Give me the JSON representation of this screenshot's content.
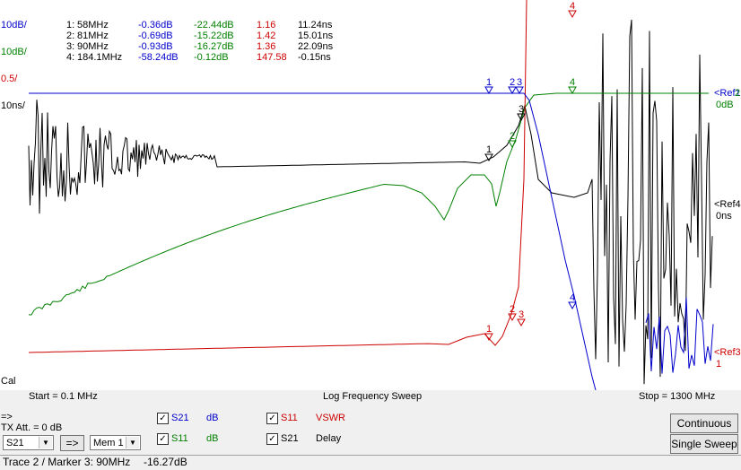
{
  "axis_labels": {
    "s21_scale": "10dB/",
    "s11_scale": "10dB/",
    "vswr_scale": "0.5/",
    "delay_scale": "10ns/",
    "cal": "Cal",
    "ref_blue": "<Ref1",
    "ref_blue_val": "0dB",
    "ref_black": "<Ref4",
    "ref_black_val": "0ns",
    "ref_red": "<Ref3",
    "ref_red_val": "1",
    "ref_green_extra": "2"
  },
  "sweep": {
    "start": "Start = 0.1 MHz",
    "mode": "Log Frequency Sweep",
    "stop": "Stop = 1300 MHz"
  },
  "markers": [
    {
      "id": "1:",
      "freq": "58MHz",
      "s21": "-0.36dB",
      "s11": "-22.44dB",
      "vswr": "1.16",
      "delay": "11.24ns"
    },
    {
      "id": "2:",
      "freq": "81MHz",
      "s21": "-0.69dB",
      "s11": "-15.22dB",
      "vswr": "1.42",
      "delay": "15.01ns"
    },
    {
      "id": "3:",
      "freq": "90MHz",
      "s21": "-0.93dB",
      "s11": "-16.27dB",
      "vswr": "1.36",
      "delay": "22.09ns"
    },
    {
      "id": "4:",
      "freq": "184.1MHz",
      "s21": "-58.24dB",
      "s11": "-0.12dB",
      "vswr": "147.58",
      "delay": "-0.15ns"
    }
  ],
  "marker_flags": [
    "1",
    "2",
    "3",
    "4"
  ],
  "controls": {
    "arrow": "=>",
    "tx_att": "TX Att. = 0 dB",
    "trace_select": "S21",
    "arrow_button": "=>",
    "mem_select": "Mem 1",
    "traces": [
      {
        "name": "S21",
        "unit": "dB",
        "color": "#0000cc",
        "checked": true
      },
      {
        "name": "S11",
        "unit": "dB",
        "color": "#008000",
        "checked": true
      },
      {
        "name": "S11",
        "unit": "VSWR",
        "color": "#cc0000",
        "checked": true
      },
      {
        "name": "S21",
        "unit": "Delay",
        "color": "#000000",
        "checked": true
      }
    ],
    "continuous": "Continuous",
    "single_sweep": "Single Sweep"
  },
  "status": {
    "text": "Trace 2 / Marker 3: 90MHz",
    "value": "-16.27dB"
  },
  "colors": {
    "s21": "#0000cc",
    "s11": "#008000",
    "vswr": "#cc0000",
    "delay": "#000000"
  }
}
